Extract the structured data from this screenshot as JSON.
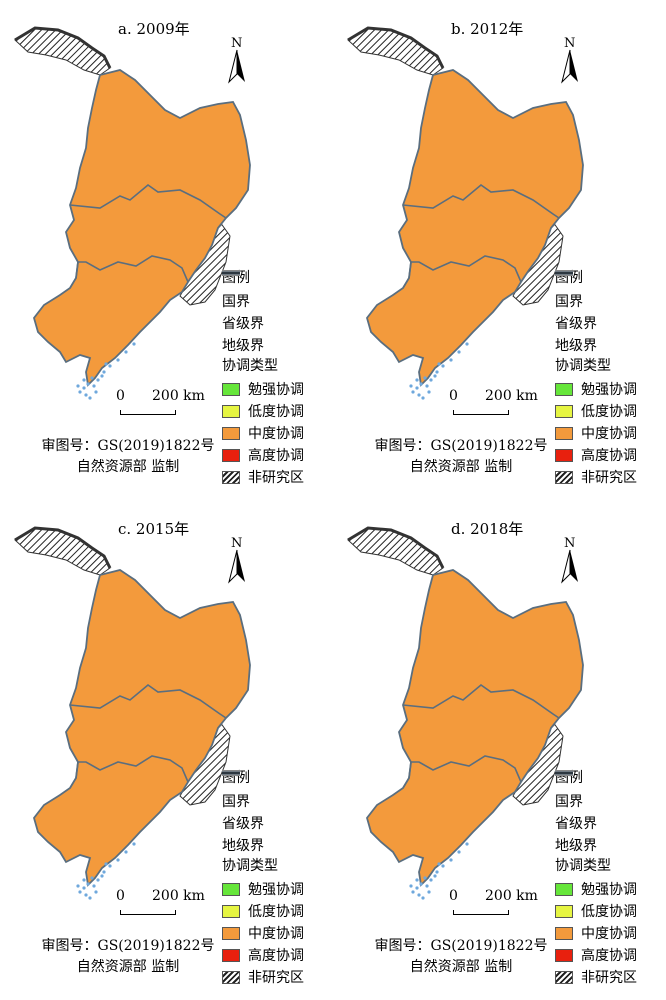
{
  "colors": {
    "mianqiang": "#66e63a",
    "didu": "#e6f542",
    "zhongdu": "#f39a3c",
    "gaodu": "#e8200e",
    "non_study": "#9e9e9e",
    "ocean_dots": "#6fa8dc",
    "boundary": "#5a6e7f"
  },
  "legend": {
    "title": "图例",
    "lines": [
      {
        "label": "国界",
        "icon": "national-boundary-line"
      },
      {
        "label": "省级界",
        "icon": "provincial-boundary-line"
      },
      {
        "label": "地级界",
        "icon": "prefecture-boundary-line"
      }
    ],
    "class_title": "协调类型",
    "classes": [
      {
        "label": "勉强协调",
        "color": "#66e63a"
      },
      {
        "label": "低度协调",
        "color": "#e6f542"
      },
      {
        "label": "中度协调",
        "color": "#f39a3c"
      },
      {
        "label": "高度协调",
        "color": "#e8200e"
      },
      {
        "label": "非研究区",
        "color": "hatched"
      }
    ]
  },
  "north_label": "N",
  "scale": {
    "zero": "0",
    "dist": "200 km"
  },
  "credit": {
    "line1": "审图号：GS(2019)1822号",
    "line2": "自然资源部 监制"
  },
  "panels": [
    {
      "title": "a. 2009年"
    },
    {
      "title": "b. 2012年"
    },
    {
      "title": "c. 2015年"
    },
    {
      "title": "d. 2018年"
    }
  ]
}
